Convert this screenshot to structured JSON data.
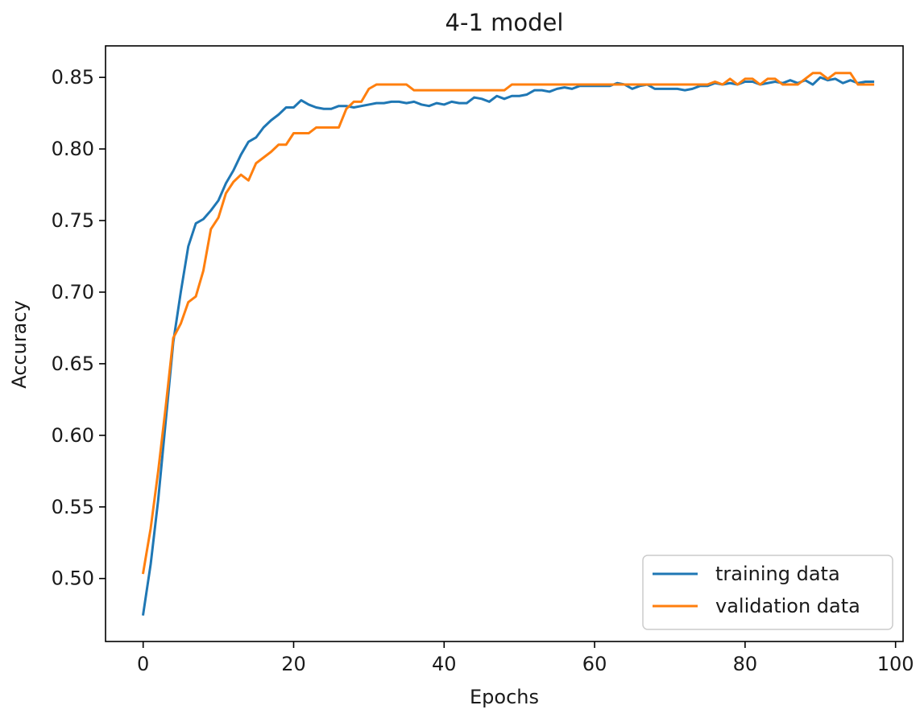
{
  "chart_data": {
    "type": "line",
    "title": "4-1 model",
    "xlabel": "Epochs",
    "ylabel": "Accuracy",
    "xlim": [
      -5,
      101
    ],
    "ylim": [
      0.456,
      0.872
    ],
    "xticks": [
      0,
      20,
      40,
      60,
      80,
      100
    ],
    "yticks": [
      0.5,
      0.55,
      0.6,
      0.65,
      0.7,
      0.75,
      0.8,
      0.85
    ],
    "xtick_labels": [
      "0",
      "20",
      "40",
      "60",
      "80",
      "100"
    ],
    "ytick_labels": [
      "0.50",
      "0.55",
      "0.60",
      "0.65",
      "0.70",
      "0.75",
      "0.80",
      "0.85"
    ],
    "grid": false,
    "legend_position": "lower-right",
    "x": [
      0,
      1,
      2,
      3,
      4,
      5,
      6,
      7,
      8,
      9,
      10,
      11,
      12,
      13,
      14,
      15,
      16,
      17,
      18,
      19,
      20,
      21,
      22,
      23,
      24,
      25,
      26,
      27,
      28,
      29,
      30,
      31,
      32,
      33,
      34,
      35,
      36,
      37,
      38,
      39,
      40,
      41,
      42,
      43,
      44,
      45,
      46,
      47,
      48,
      49,
      50,
      51,
      52,
      53,
      54,
      55,
      56,
      57,
      58,
      59,
      60,
      61,
      62,
      63,
      64,
      65,
      66,
      67,
      68,
      69,
      70,
      71,
      72,
      73,
      74,
      75,
      76,
      77,
      78,
      79,
      80,
      81,
      82,
      83,
      84,
      85,
      86,
      87,
      88,
      89,
      90,
      91,
      92,
      93,
      94,
      95,
      96,
      97
    ],
    "series": [
      {
        "name": "training data",
        "color": "#1f77b4",
        "values": [
          0.475,
          0.51,
          0.555,
          0.61,
          0.665,
          0.7,
          0.732,
          0.748,
          0.751,
          0.757,
          0.764,
          0.776,
          0.785,
          0.796,
          0.805,
          0.808,
          0.815,
          0.82,
          0.824,
          0.829,
          0.829,
          0.834,
          0.831,
          0.829,
          0.828,
          0.828,
          0.83,
          0.83,
          0.829,
          0.83,
          0.831,
          0.832,
          0.832,
          0.833,
          0.833,
          0.832,
          0.833,
          0.831,
          0.83,
          0.832,
          0.831,
          0.833,
          0.832,
          0.832,
          0.836,
          0.835,
          0.833,
          0.837,
          0.835,
          0.837,
          0.837,
          0.838,
          0.841,
          0.841,
          0.84,
          0.842,
          0.843,
          0.842,
          0.844,
          0.844,
          0.844,
          0.844,
          0.844,
          0.846,
          0.845,
          0.842,
          0.844,
          0.845,
          0.842,
          0.842,
          0.842,
          0.842,
          0.841,
          0.842,
          0.844,
          0.844,
          0.846,
          0.845,
          0.846,
          0.845,
          0.847,
          0.847,
          0.845,
          0.846,
          0.847,
          0.846,
          0.848,
          0.846,
          0.848,
          0.845,
          0.85,
          0.848,
          0.849,
          0.846,
          0.848,
          0.846,
          0.847,
          0.847
        ]
      },
      {
        "name": "validation data",
        "color": "#ff7f0e",
        "values": [
          0.504,
          0.535,
          0.575,
          0.62,
          0.668,
          0.678,
          0.693,
          0.697,
          0.715,
          0.744,
          0.752,
          0.769,
          0.777,
          0.782,
          0.778,
          0.79,
          0.794,
          0.798,
          0.803,
          0.803,
          0.811,
          0.811,
          0.811,
          0.815,
          0.815,
          0.815,
          0.815,
          0.828,
          0.833,
          0.833,
          0.842,
          0.845,
          0.845,
          0.845,
          0.845,
          0.845,
          0.841,
          0.841,
          0.841,
          0.841,
          0.841,
          0.841,
          0.841,
          0.841,
          0.841,
          0.841,
          0.841,
          0.841,
          0.841,
          0.845,
          0.845,
          0.845,
          0.845,
          0.845,
          0.845,
          0.845,
          0.845,
          0.845,
          0.845,
          0.845,
          0.845,
          0.845,
          0.845,
          0.845,
          0.845,
          0.845,
          0.845,
          0.845,
          0.845,
          0.845,
          0.845,
          0.845,
          0.845,
          0.845,
          0.845,
          0.845,
          0.847,
          0.845,
          0.849,
          0.845,
          0.849,
          0.849,
          0.845,
          0.849,
          0.849,
          0.845,
          0.845,
          0.845,
          0.849,
          0.853,
          0.853,
          0.849,
          0.853,
          0.853,
          0.853,
          0.845,
          0.845,
          0.845
        ]
      }
    ]
  }
}
